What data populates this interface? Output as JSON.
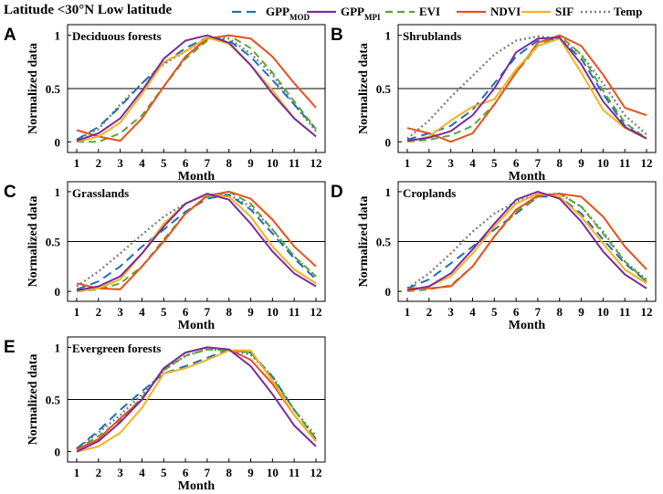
{
  "header": {
    "title": "Latitude <30°N  Low latitude"
  },
  "legend": [
    {
      "key": "gpp_mod",
      "label": "GPP",
      "sub": "MOD",
      "color": "#1f6fb5",
      "dash": "10,6"
    },
    {
      "key": "gpp_mpi",
      "label": "GPP",
      "sub": "MPI",
      "color": "#7b2c9e",
      "dash": ""
    },
    {
      "key": "evi",
      "label": "EVI",
      "sub": "",
      "color": "#5aa832",
      "dash": "8,5"
    },
    {
      "key": "ndvi",
      "label": "NDVI",
      "sub": "",
      "color": "#e8501e",
      "dash": ""
    },
    {
      "key": "sif",
      "label": "SIF",
      "sub": "",
      "color": "#f5b21a",
      "dash": ""
    },
    {
      "key": "temp",
      "label": "Temp",
      "sub": "",
      "color": "#808080",
      "dash": "2,3"
    }
  ],
  "chart_data": [
    {
      "type": "line",
      "panel_label": "A",
      "title": "Deciduous forests",
      "xlabel": "Month",
      "ylabel": "Normalized data",
      "x": [
        1,
        2,
        3,
        4,
        5,
        6,
        7,
        8,
        9,
        10,
        11,
        12
      ],
      "ylim": [
        -0.1,
        1.1
      ],
      "yticks": [
        "0",
        "0.5",
        "1"
      ],
      "reference_line": 0.5,
      "series": [
        {
          "name": "gpp_mod",
          "values": [
            0.02,
            0.14,
            0.33,
            0.55,
            0.74,
            0.88,
            0.98,
            0.95,
            0.8,
            0.58,
            0.35,
            0.12
          ]
        },
        {
          "name": "gpp_mpi",
          "values": [
            0.01,
            0.08,
            0.22,
            0.48,
            0.78,
            0.95,
            1.0,
            0.93,
            0.72,
            0.45,
            0.22,
            0.05
          ]
        },
        {
          "name": "evi",
          "values": [
            0.0,
            0.0,
            0.08,
            0.25,
            0.52,
            0.78,
            0.95,
            1.0,
            0.88,
            0.65,
            0.38,
            0.12
          ]
        },
        {
          "name": "ndvi",
          "values": [
            0.11,
            0.05,
            0.01,
            0.22,
            0.52,
            0.8,
            0.97,
            1.0,
            0.97,
            0.8,
            0.55,
            0.32
          ]
        },
        {
          "name": "sif",
          "values": [
            0.0,
            0.05,
            0.18,
            0.45,
            0.75,
            0.85,
            0.98,
            0.92,
            0.72,
            0.48,
            0.22,
            0.05
          ]
        },
        {
          "name": "temp",
          "values": [
            0.02,
            0.12,
            0.35,
            0.55,
            0.73,
            0.85,
            0.97,
            0.97,
            0.83,
            0.63,
            0.35,
            0.1
          ]
        }
      ]
    },
    {
      "type": "line",
      "panel_label": "B",
      "title": "Shrublands",
      "xlabel": "Month",
      "ylabel": "Normalized data",
      "x": [
        1,
        2,
        3,
        4,
        5,
        6,
        7,
        8,
        9,
        10,
        11,
        12
      ],
      "ylim": [
        -0.1,
        1.1
      ],
      "yticks": [
        "0",
        "0.5",
        "1"
      ],
      "reference_line": 0.5,
      "series": [
        {
          "name": "gpp_mod",
          "values": [
            0.02,
            0.08,
            0.15,
            0.3,
            0.55,
            0.8,
            0.95,
            0.97,
            0.78,
            0.45,
            0.15,
            0.03
          ]
        },
        {
          "name": "gpp_mpi",
          "values": [
            0.01,
            0.04,
            0.1,
            0.25,
            0.5,
            0.84,
            0.97,
            0.98,
            0.73,
            0.38,
            0.14,
            0.03
          ]
        },
        {
          "name": "evi",
          "values": [
            0.0,
            0.02,
            0.06,
            0.15,
            0.35,
            0.65,
            0.9,
            1.0,
            0.82,
            0.48,
            0.18,
            0.03
          ]
        },
        {
          "name": "ndvi",
          "values": [
            0.13,
            0.08,
            0.0,
            0.08,
            0.35,
            0.65,
            0.93,
            1.0,
            0.9,
            0.63,
            0.32,
            0.25
          ]
        },
        {
          "name": "sif",
          "values": [
            0.0,
            0.05,
            0.2,
            0.33,
            0.4,
            0.68,
            0.9,
            0.97,
            0.65,
            0.3,
            0.13,
            0.03
          ]
        },
        {
          "name": "temp",
          "values": [
            0.03,
            0.2,
            0.42,
            0.62,
            0.82,
            0.95,
            0.99,
            0.97,
            0.82,
            0.55,
            0.25,
            0.07
          ]
        }
      ]
    },
    {
      "type": "line",
      "panel_label": "C",
      "title": "Grasslands",
      "xlabel": "Month",
      "ylabel": "Normalized data",
      "x": [
        1,
        2,
        3,
        4,
        5,
        6,
        7,
        8,
        9,
        10,
        11,
        12
      ],
      "ylim": [
        -0.1,
        1.1
      ],
      "yticks": [
        "0",
        "0.5",
        "1"
      ],
      "reference_line": 0.5,
      "series": [
        {
          "name": "gpp_mod",
          "values": [
            0.02,
            0.1,
            0.25,
            0.45,
            0.62,
            0.8,
            0.93,
            0.97,
            0.82,
            0.58,
            0.33,
            0.12
          ]
        },
        {
          "name": "gpp_mpi",
          "values": [
            0.01,
            0.05,
            0.15,
            0.38,
            0.65,
            0.88,
            0.98,
            0.92,
            0.68,
            0.4,
            0.18,
            0.05
          ]
        },
        {
          "name": "evi",
          "values": [
            0.0,
            0.02,
            0.08,
            0.25,
            0.52,
            0.78,
            0.95,
            1.0,
            0.88,
            0.62,
            0.35,
            0.15
          ]
        },
        {
          "name": "ndvi",
          "values": [
            0.08,
            0.03,
            0.02,
            0.25,
            0.5,
            0.78,
            0.96,
            1.0,
            0.93,
            0.72,
            0.45,
            0.25
          ]
        },
        {
          "name": "sif",
          "values": [
            0.0,
            0.03,
            0.12,
            0.38,
            0.68,
            0.88,
            0.97,
            0.95,
            0.75,
            0.45,
            0.22,
            0.08
          ]
        },
        {
          "name": "temp",
          "values": [
            0.05,
            0.2,
            0.38,
            0.57,
            0.75,
            0.88,
            0.97,
            0.97,
            0.85,
            0.62,
            0.35,
            0.15
          ]
        }
      ]
    },
    {
      "type": "line",
      "panel_label": "D",
      "title": "Croplands",
      "xlabel": "Month",
      "ylabel": "Normalized data",
      "x": [
        1,
        2,
        3,
        4,
        5,
        6,
        7,
        8,
        9,
        10,
        11,
        12
      ],
      "ylim": [
        -0.1,
        1.1
      ],
      "yticks": [
        "0",
        "0.5",
        "1"
      ],
      "reference_line": 0.5,
      "series": [
        {
          "name": "gpp_mod",
          "values": [
            0.03,
            0.12,
            0.28,
            0.45,
            0.62,
            0.78,
            0.95,
            0.95,
            0.78,
            0.52,
            0.28,
            0.1
          ]
        },
        {
          "name": "gpp_mpi",
          "values": [
            0.01,
            0.05,
            0.18,
            0.42,
            0.68,
            0.92,
            1.0,
            0.93,
            0.7,
            0.4,
            0.17,
            0.03
          ]
        },
        {
          "name": "evi",
          "values": [
            0.0,
            0.02,
            0.06,
            0.25,
            0.55,
            0.8,
            0.95,
            0.98,
            0.85,
            0.58,
            0.3,
            0.1
          ]
        },
        {
          "name": "ndvi",
          "values": [
            0.03,
            0.03,
            0.05,
            0.25,
            0.55,
            0.82,
            0.96,
            0.98,
            0.95,
            0.75,
            0.45,
            0.22
          ]
        },
        {
          "name": "sif",
          "values": [
            0.0,
            0.05,
            0.15,
            0.38,
            0.65,
            0.88,
            0.98,
            0.95,
            0.75,
            0.48,
            0.22,
            0.08
          ]
        },
        {
          "name": "temp",
          "values": [
            0.03,
            0.18,
            0.38,
            0.6,
            0.78,
            0.9,
            0.97,
            0.98,
            0.85,
            0.6,
            0.3,
            0.12
          ]
        }
      ]
    },
    {
      "type": "line",
      "panel_label": "E",
      "title": "Evergreen forests",
      "xlabel": "Month",
      "ylabel": "Normalized data",
      "x": [
        1,
        2,
        3,
        4,
        5,
        6,
        7,
        8,
        9,
        10,
        11,
        12
      ],
      "ylim": [
        -0.1,
        1.1
      ],
      "yticks": [
        "0",
        "0.5",
        "1"
      ],
      "reference_line": 0.5,
      "series": [
        {
          "name": "gpp_mod",
          "values": [
            0.03,
            0.2,
            0.4,
            0.58,
            0.75,
            0.82,
            0.9,
            0.98,
            0.95,
            0.72,
            0.4,
            0.12
          ]
        },
        {
          "name": "gpp_mpi",
          "values": [
            0.0,
            0.1,
            0.28,
            0.5,
            0.8,
            0.95,
            1.0,
            0.98,
            0.82,
            0.55,
            0.25,
            0.05
          ]
        },
        {
          "name": "evi",
          "values": [
            0.02,
            0.15,
            0.3,
            0.52,
            0.78,
            0.92,
            0.98,
            0.97,
            0.95,
            0.7,
            0.4,
            0.12
          ]
        },
        {
          "name": "ndvi",
          "values": [
            0.02,
            0.12,
            0.32,
            0.5,
            0.8,
            0.95,
            1.0,
            0.98,
            0.88,
            0.65,
            0.35,
            0.1
          ]
        },
        {
          "name": "sif",
          "values": [
            0.0,
            0.05,
            0.18,
            0.42,
            0.75,
            0.8,
            0.88,
            0.97,
            0.97,
            0.68,
            0.35,
            0.1
          ]
        },
        {
          "name": "temp",
          "values": [
            0.03,
            0.18,
            0.35,
            0.55,
            0.78,
            0.92,
            0.98,
            0.97,
            0.93,
            0.72,
            0.4,
            0.15
          ]
        }
      ]
    }
  ]
}
